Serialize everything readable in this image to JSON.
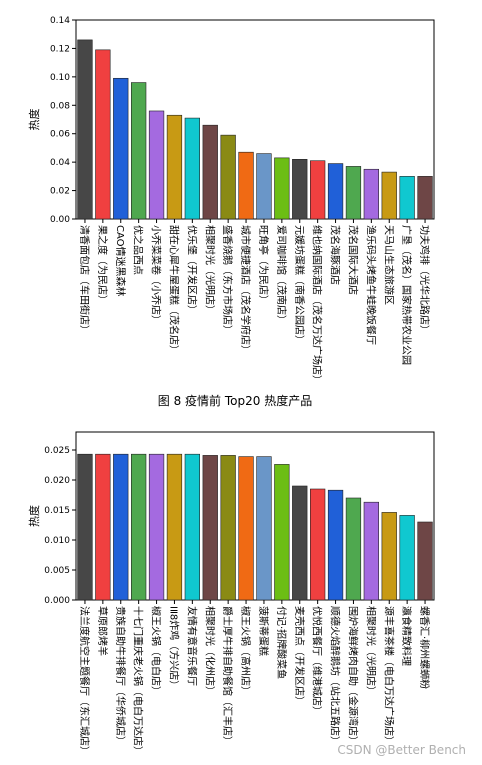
{
  "chart_data": [
    {
      "type": "bar",
      "ylabel": "热度",
      "ylim": [
        0,
        0.14
      ],
      "yticks": [
        "0.00",
        "0.02",
        "0.04",
        "0.06",
        "0.08",
        "0.10",
        "0.12",
        "0.14"
      ],
      "grid": false,
      "categories": [
        "清香面包店（车田街店）",
        "果之度（为民店）",
        "CAO情迷黑森林",
        "优之品西点",
        "小乔菜菜卷（小乔店）",
        "甜在心犀牛屋蛋糕（茂名店）",
        "优乐堡（开发区店）",
        "相聚时光（光明店）",
        "盛香烧鹅（东方市场店）",
        "城市便捷酒店（茂名学府店）",
        "旺角亭（为民店）",
        "爱司咖啡馆（茂南店）",
        "元媛坊蛋糕（南香公园店）",
        "维也纳国际酒店（茂名万达广场店）",
        "茂名海豚酒店",
        "茂名国际大酒店",
        "渔乐码头烤鱼牛蛙晚饭餐厅",
        "天马山生态旅游区",
        "广垦（茂名）国家热带农业公园",
        "功夫鸡排（光华北路店）"
      ],
      "values": [
        0.126,
        0.119,
        0.099,
        0.096,
        0.076,
        0.073,
        0.071,
        0.066,
        0.059,
        0.047,
        0.046,
        0.043,
        0.042,
        0.041,
        0.039,
        0.037,
        0.035,
        0.033,
        0.03,
        0.03
      ],
      "colors": [
        "#474747",
        "#f04040",
        "#2060d8",
        "#4fa84f",
        "#a46ae0",
        "#c89a14",
        "#10c8d0",
        "#6e4646",
        "#8a8a14",
        "#f06a14",
        "#6a96c8",
        "#6cbe14",
        "#474747",
        "#f04040",
        "#2060d8",
        "#4fa84f",
        "#a46ae0",
        "#c89a14",
        "#10c8d0",
        "#6e4646"
      ]
    },
    {
      "type": "bar",
      "ylabel": "热度",
      "ylim": [
        0,
        0.028
      ],
      "yticks": [
        "0.000",
        "0.005",
        "0.010",
        "0.015",
        "0.020",
        "0.025"
      ],
      "grid": false,
      "categories": [
        "法兰度航空主题餐厅（东汇城店）",
        "草原郎烤羊",
        "贵族自助牛排餐厅（华侨城店）",
        "十七门重庆老火锅（电白万达店）",
        "椒王火锅（电白店）",
        "ⅠⅡ8炸鸡（方兴店）",
        "友情有意音乐餐厅",
        "相聚时光（化州店）",
        "爵士厚牛排自助餐馆（汇丰店）",
        "椒王火锅（高州店）",
        "菠斯蒂蛋糕",
        "付记·招牌酸菜鱼",
        "麦壳西点（开发区店）",
        "优悦西餐厅（维港城店）",
        "顺德火焰醉鹅坊（站北五路店）",
        "围炉海鲜烤肉自助（金源湾店）",
        "相聚时光（光明店）",
        "源丰喜茶楼（电白万达广场店）",
        "瀛食精致料理",
        "螺香汇·柳州螺蛳粉"
      ],
      "values": [
        0.0243,
        0.0243,
        0.0243,
        0.0243,
        0.0243,
        0.0243,
        0.0243,
        0.0241,
        0.0241,
        0.0239,
        0.0239,
        0.0226,
        0.019,
        0.0185,
        0.0183,
        0.017,
        0.0163,
        0.0146,
        0.0141,
        0.013
      ],
      "colors": [
        "#474747",
        "#f04040",
        "#2060d8",
        "#4fa84f",
        "#a46ae0",
        "#c89a14",
        "#10c8d0",
        "#6e4646",
        "#8a8a14",
        "#f06a14",
        "#6a96c8",
        "#6cbe14",
        "#474747",
        "#f04040",
        "#2060d8",
        "#4fa84f",
        "#a46ae0",
        "#c89a14",
        "#10c8d0",
        "#6e4646"
      ]
    }
  ],
  "figure_caption": "图 8 疫情前 Top20 热度产品",
  "watermark": "CSDN @Better Bench"
}
